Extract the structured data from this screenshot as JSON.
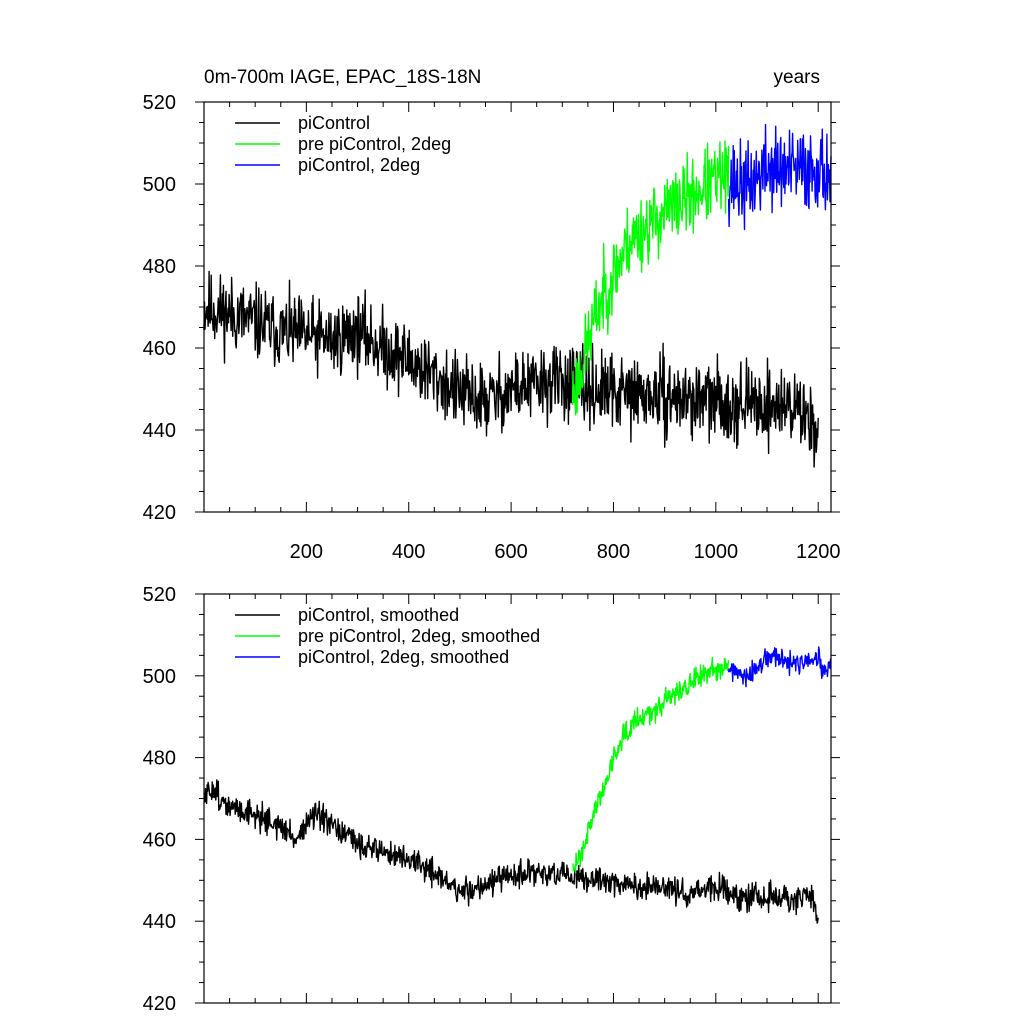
{
  "chart_data": [
    {
      "type": "line",
      "title_left": "0m-700m IAGE, EPAC_18S-18N",
      "title_right": "years",
      "xlim": [
        0,
        1225
      ],
      "ylim": [
        420,
        520
      ],
      "xticks": [
        200,
        400,
        600,
        800,
        1000,
        1200
      ],
      "yticks": [
        420,
        440,
        460,
        480,
        500,
        520
      ],
      "show_x_tick_labels": true,
      "grid": false,
      "legend_position": "top-left",
      "series": [
        {
          "name": "piControl",
          "color": "#000000",
          "noise": 4.5,
          "seed": 11,
          "x_start": 0,
          "x_end": 1200,
          "keypoints": [
            [
              0,
              470
            ],
            [
              60,
              468
            ],
            [
              150,
              464
            ],
            [
              250,
              462
            ],
            [
              300,
              464
            ],
            [
              350,
              460
            ],
            [
              400,
              457
            ],
            [
              450,
              453
            ],
            [
              500,
              449
            ],
            [
              550,
              447
            ],
            [
              600,
              450
            ],
            [
              650,
              451
            ],
            [
              700,
              452
            ],
            [
              750,
              450
            ],
            [
              800,
              449
            ],
            [
              900,
              448
            ],
            [
              1000,
              447
            ],
            [
              1100,
              446
            ],
            [
              1150,
              446
            ],
            [
              1200,
              441
            ]
          ]
        },
        {
          "name": "pre piControl, 2deg",
          "color": "#00ff00",
          "noise": 4.5,
          "seed": 23,
          "x_start": 720,
          "x_end": 1025,
          "keypoints": [
            [
              720,
              449
            ],
            [
              730,
              452
            ],
            [
              750,
              461
            ],
            [
              770,
              470
            ],
            [
              800,
              478
            ],
            [
              830,
              486
            ],
            [
              860,
              489
            ],
            [
              900,
              493
            ],
            [
              950,
              497
            ],
            [
              1000,
              501
            ],
            [
              1025,
              502
            ]
          ]
        },
        {
          "name": "piControl, 2deg",
          "color": "#0000ff",
          "noise": 5.0,
          "seed": 37,
          "x_start": 1025,
          "x_end": 1225,
          "keypoints": [
            [
              1025,
              501
            ],
            [
              1060,
              499
            ],
            [
              1100,
              504
            ],
            [
              1150,
              503
            ],
            [
              1200,
              504
            ],
            [
              1225,
              502
            ]
          ]
        }
      ]
    },
    {
      "type": "line",
      "xlim": [
        0,
        1225
      ],
      "ylim": [
        420,
        520
      ],
      "xticks": [
        200,
        400,
        600,
        800,
        1000,
        1200
      ],
      "yticks": [
        420,
        440,
        460,
        480,
        500,
        520
      ],
      "show_x_tick_labels": false,
      "grid": false,
      "legend_position": "top-left",
      "series": [
        {
          "name": "piControl, smoothed",
          "color": "#000000",
          "noise": 1.6,
          "seed": 51,
          "x_start": 0,
          "x_end": 1200,
          "keypoints": [
            [
              0,
              470
            ],
            [
              20,
              473
            ],
            [
              40,
              468
            ],
            [
              80,
              467
            ],
            [
              120,
              465
            ],
            [
              150,
              463
            ],
            [
              180,
              460
            ],
            [
              200,
              464
            ],
            [
              220,
              466
            ],
            [
              250,
              463
            ],
            [
              300,
              459
            ],
            [
              350,
              457
            ],
            [
              400,
              455
            ],
            [
              450,
              452
            ],
            [
              500,
              447
            ],
            [
              550,
              449
            ],
            [
              600,
              451
            ],
            [
              650,
              452
            ],
            [
              700,
              451
            ],
            [
              750,
              450
            ],
            [
              800,
              450
            ],
            [
              850,
              448
            ],
            [
              900,
              448
            ],
            [
              950,
              447
            ],
            [
              1000,
              448
            ],
            [
              1050,
              446
            ],
            [
              1100,
              446
            ],
            [
              1150,
              445
            ],
            [
              1190,
              446
            ],
            [
              1200,
              440
            ]
          ]
        },
        {
          "name": "pre piControl, 2deg, smoothed",
          "color": "#00ff00",
          "noise": 1.4,
          "seed": 63,
          "x_start": 720,
          "x_end": 1025,
          "keypoints": [
            [
              720,
              452
            ],
            [
              740,
              458
            ],
            [
              760,
              466
            ],
            [
              780,
              472
            ],
            [
              800,
              480
            ],
            [
              820,
              486
            ],
            [
              840,
              489
            ],
            [
              870,
              491
            ],
            [
              900,
              494
            ],
            [
              950,
              498
            ],
            [
              1000,
              502
            ],
            [
              1025,
              503
            ]
          ]
        },
        {
          "name": "piControl, 2deg, smoothed",
          "color": "#0000ff",
          "noise": 1.3,
          "seed": 77,
          "x_start": 1025,
          "x_end": 1225,
          "keypoints": [
            [
              1025,
              502
            ],
            [
              1060,
              499
            ],
            [
              1080,
              502
            ],
            [
              1110,
              505
            ],
            [
              1140,
              503
            ],
            [
              1170,
              503
            ],
            [
              1200,
              504
            ],
            [
              1215,
              500
            ],
            [
              1225,
              503
            ]
          ]
        }
      ]
    }
  ]
}
